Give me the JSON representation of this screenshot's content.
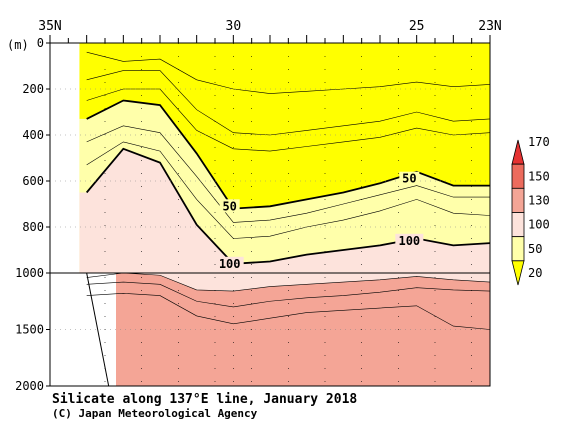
{
  "chart_data": {
    "type": "contour",
    "title": "Silicate along 137°E line, January 2018",
    "credit": "(C) Japan Meteorological Agency",
    "y_unit_label": "(m)",
    "x_axis": {
      "label_positions_lat": [
        35,
        30,
        25,
        23
      ],
      "tick_labels": [
        "35N",
        "30",
        "25",
        "23N"
      ],
      "range_lat": [
        35,
        23
      ],
      "station_lats": [
        33.5,
        32.5,
        31.5,
        30.5,
        30,
        29.5,
        28.5,
        27.5,
        26.5,
        25.5,
        24.5,
        23.5
      ]
    },
    "y_axis": {
      "upper_ticks": [
        0,
        200,
        400,
        600,
        800,
        1000
      ],
      "lower_ticks": [
        1500,
        2000
      ],
      "upper_range": [
        0,
        1000
      ],
      "lower_range": [
        1000,
        2000
      ]
    },
    "colorbar": {
      "levels": [
        20,
        50,
        100,
        130,
        150,
        170
      ],
      "labels": [
        "20",
        "50",
        "100",
        "130",
        "150",
        "170"
      ],
      "colors": [
        "#ffff00",
        "#ffffaa",
        "#fde3dc",
        "#f4a596",
        "#ec6b5d",
        "#e53232"
      ]
    },
    "contour_labels": [
      {
        "text": "50",
        "lat": 30.1,
        "depth": 710
      },
      {
        "text": "50",
        "lat": 25.2,
        "depth": 590
      },
      {
        "text": "100",
        "lat": 30.1,
        "depth": 960
      },
      {
        "text": "100",
        "lat": 25.2,
        "depth": 860
      }
    ],
    "sections": {
      "upper": {
        "lats": [
          34,
          33,
          32,
          31,
          30,
          29,
          28,
          27,
          26,
          25,
          24,
          23
        ],
        "isolines": [
          {
            "value": 20,
            "depths": [
              40,
              80,
              70,
              160,
              200,
              220,
              210,
              200,
              190,
              170,
              190,
              180
            ]
          },
          {
            "value": 30,
            "depths": [
              160,
              120,
              120,
              290,
              390,
              400,
              380,
              360,
              340,
              300,
              340,
              330
            ]
          },
          {
            "value": 40,
            "depths": [
              250,
              200,
              200,
              380,
              460,
              470,
              450,
              430,
              410,
              370,
              400,
              390
            ]
          },
          {
            "value": 50,
            "depths": [
              330,
              250,
              270,
              480,
              720,
              710,
              680,
              650,
              610,
              560,
              620,
              620
            ]
          },
          {
            "value": 60,
            "depths": [
              430,
              360,
              390,
              580,
              780,
              770,
              740,
              700,
              660,
              620,
              670,
              670
            ]
          },
          {
            "value": 80,
            "depths": [
              530,
              430,
              470,
              680,
              850,
              840,
              800,
              770,
              730,
              680,
              740,
              750
            ]
          },
          {
            "value": 100,
            "depths": [
              650,
              460,
              520,
              790,
              960,
              950,
              920,
              900,
              880,
              850,
              880,
              870
            ]
          }
        ]
      },
      "lower": {
        "lats": [
          34,
          33,
          32,
          31,
          30,
          29,
          28,
          27,
          26,
          25,
          24,
          23
        ],
        "isolines": [
          {
            "value": 130,
            "depths": [
              1040,
              1000,
              1020,
              1150,
              1160,
              1120,
              1100,
              1080,
              1060,
              1030,
              1060,
              1080
            ]
          },
          {
            "value": 140,
            "depths": [
              1100,
              1080,
              1100,
              1250,
              1300,
              1250,
              1220,
              1200,
              1170,
              1130,
              1150,
              1160
            ]
          },
          {
            "value": 150,
            "depths": [
              1200,
              1180,
              1200,
              1380,
              1450,
              1400,
              1350,
              1330,
              1310,
              1290,
              1470,
              1500
            ]
          }
        ]
      }
    },
    "grid": true
  }
}
